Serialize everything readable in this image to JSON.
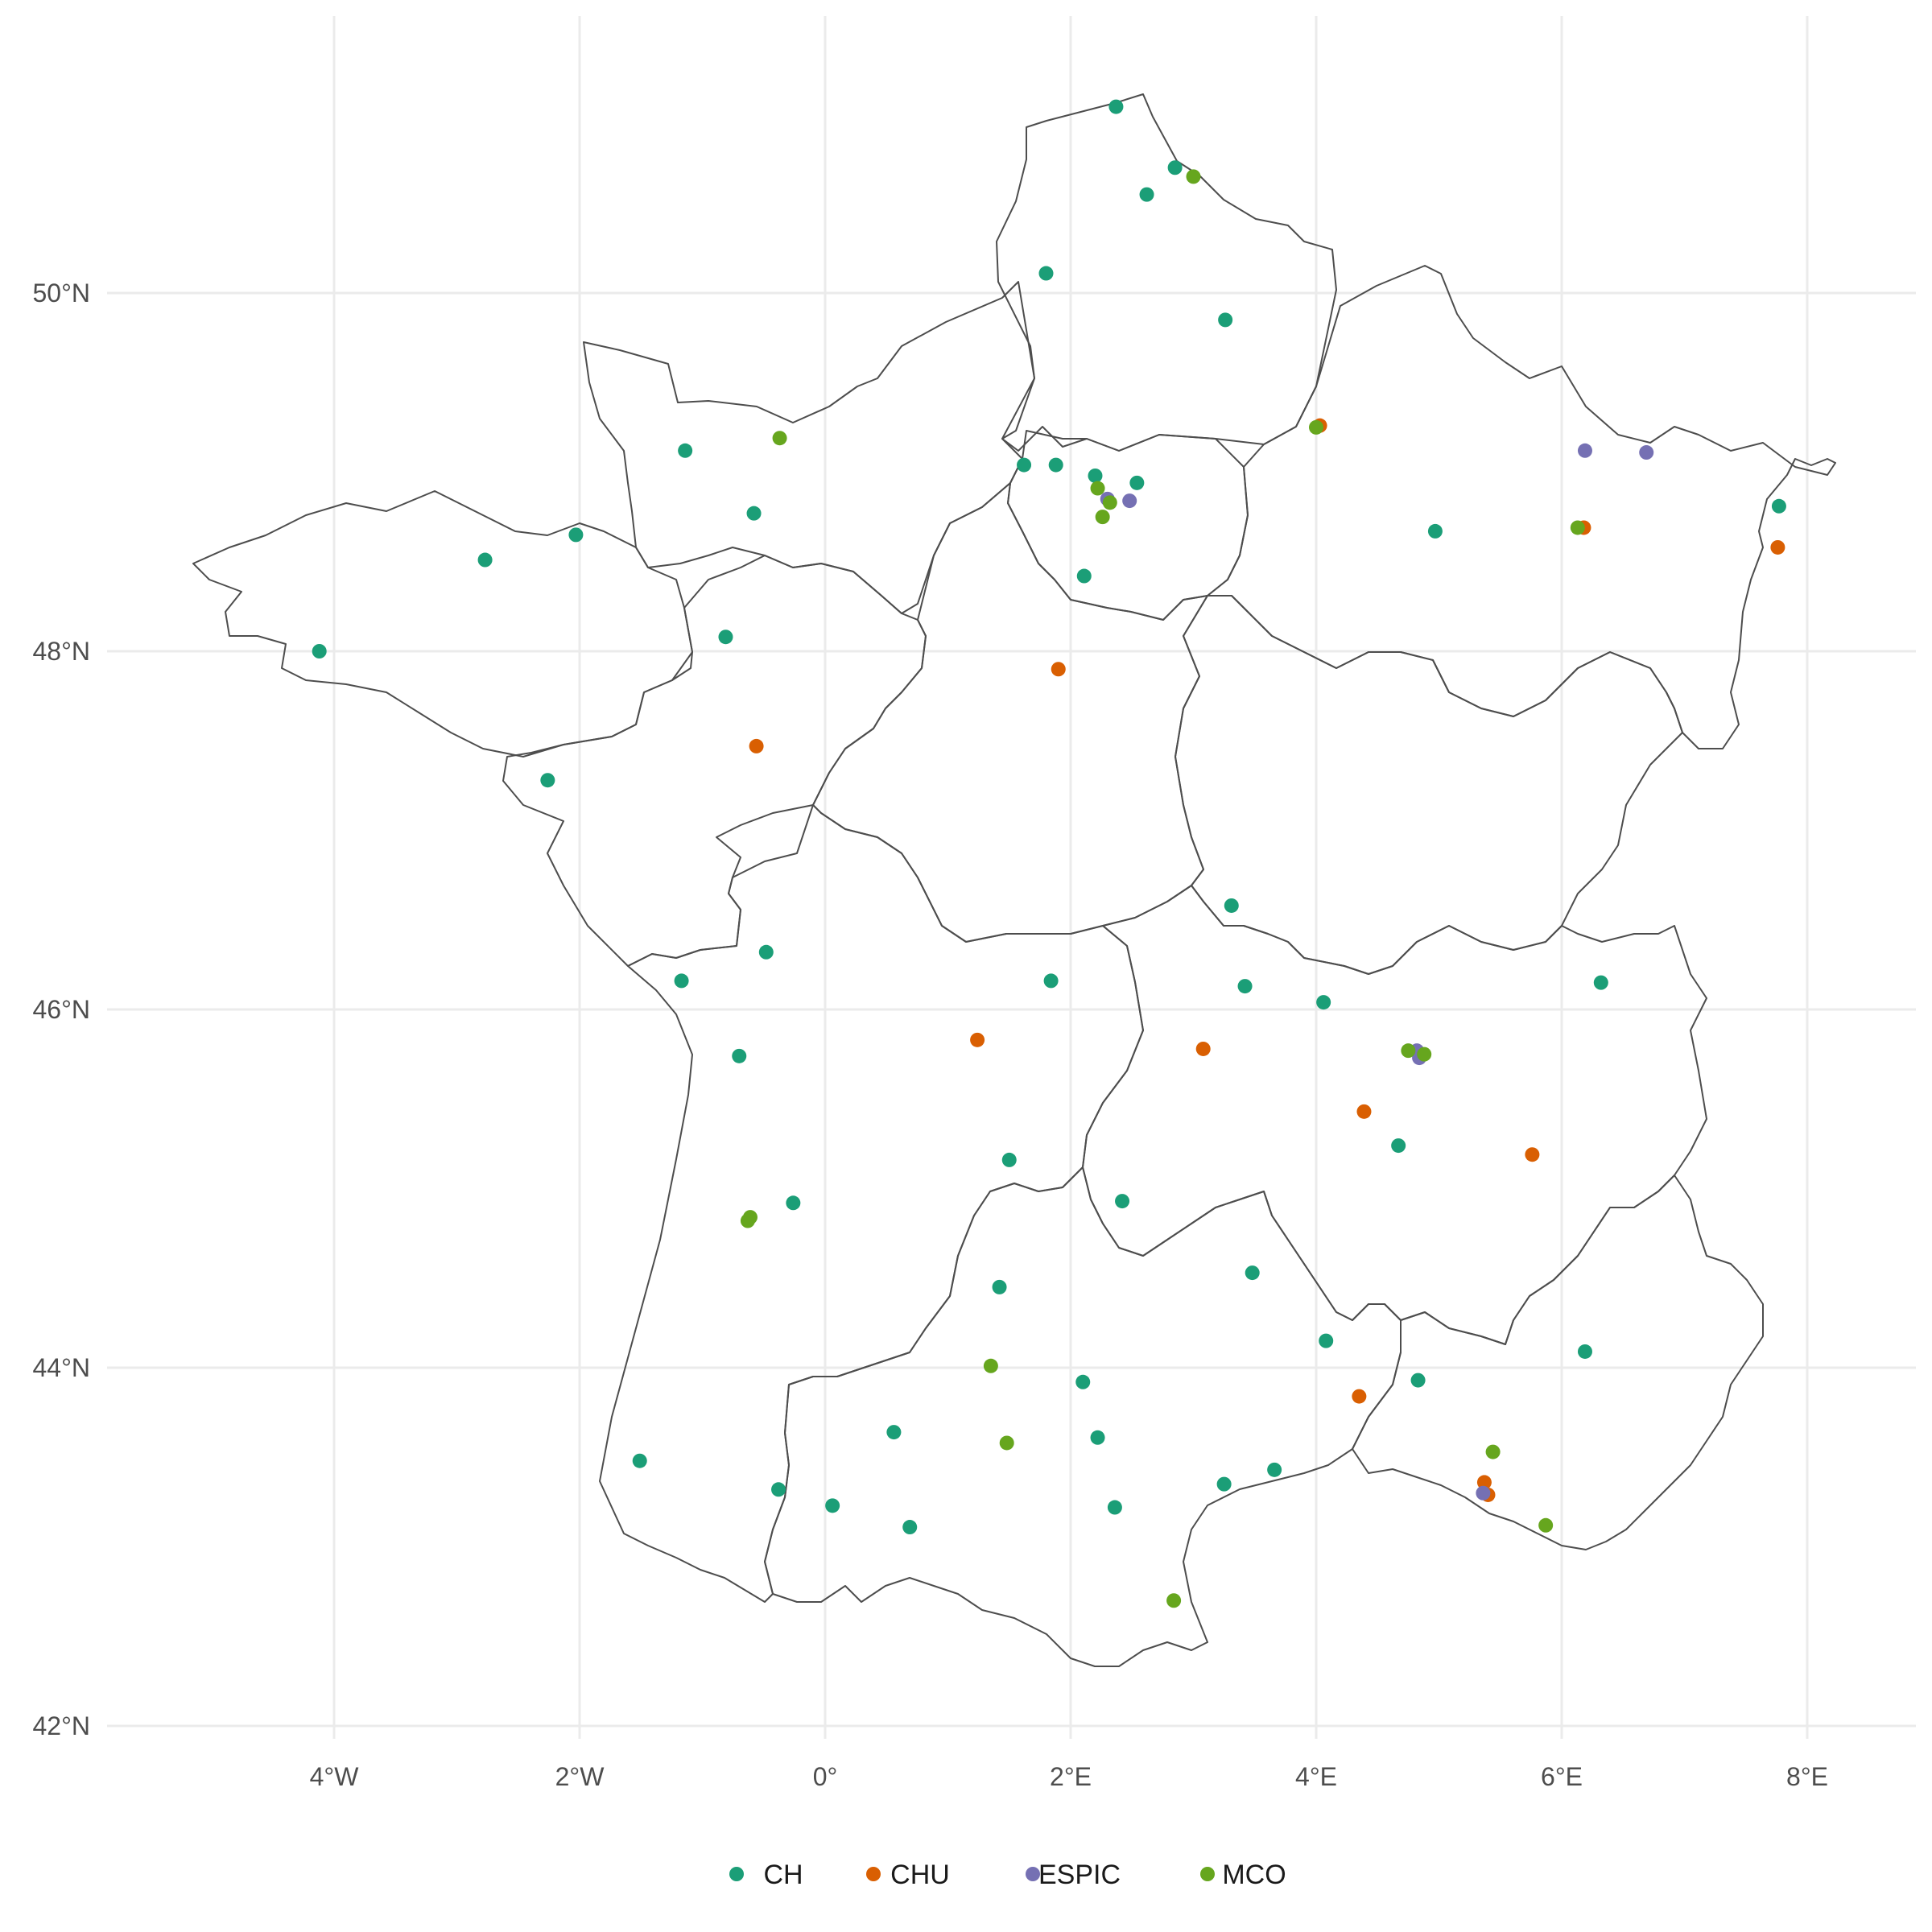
{
  "chart_data": {
    "type": "scatter",
    "projection": "equirectangular",
    "title": "",
    "xlabel": "",
    "ylabel": "",
    "xlim": [
      -6.0,
      8.9
    ],
    "ylim": [
      41.5,
      51.6
    ],
    "grid": true,
    "legend_position": "bottom",
    "x_ticks": [
      {
        "value": -4,
        "label": "4°W"
      },
      {
        "value": -2,
        "label": "2°W"
      },
      {
        "value": 0,
        "label": "0°"
      },
      {
        "value": 2,
        "label": "2°E"
      },
      {
        "value": 4,
        "label": "4°E"
      },
      {
        "value": 6,
        "label": "6°E"
      },
      {
        "value": 8,
        "label": "8°E"
      }
    ],
    "y_ticks": [
      {
        "value": 42,
        "label": "42°N"
      },
      {
        "value": 44,
        "label": "44°N"
      },
      {
        "value": 46,
        "label": "46°N"
      },
      {
        "value": 48,
        "label": "48°N"
      },
      {
        "value": 50,
        "label": "50°N"
      }
    ],
    "series": [
      {
        "name": "CH",
        "color": "#1b9e77",
        "points": [
          [
            2.37,
            51.04
          ],
          [
            2.85,
            50.7
          ],
          [
            2.62,
            50.55
          ],
          [
            1.8,
            50.11
          ],
          [
            3.26,
            49.85
          ],
          [
            -1.14,
            49.12
          ],
          [
            -0.58,
            48.77
          ],
          [
            -2.77,
            48.51
          ],
          [
            -2.03,
            48.65
          ],
          [
            -4.12,
            48.0
          ],
          [
            -0.81,
            48.08
          ],
          [
            -2.26,
            47.28
          ],
          [
            1.62,
            49.04
          ],
          [
            1.88,
            49.04
          ],
          [
            2.2,
            48.98
          ],
          [
            2.54,
            48.94
          ],
          [
            2.11,
            48.42
          ],
          [
            4.97,
            48.67
          ],
          [
            7.77,
            48.81
          ],
          [
            3.31,
            46.58
          ],
          [
            -0.48,
            46.32
          ],
          [
            -1.17,
            46.16
          ],
          [
            -0.7,
            45.74
          ],
          [
            1.84,
            46.16
          ],
          [
            3.42,
            46.13
          ],
          [
            4.06,
            46.04
          ],
          [
            6.32,
            46.15
          ],
          [
            4.67,
            45.24
          ],
          [
            1.5,
            45.16
          ],
          [
            2.42,
            44.93
          ],
          [
            -0.26,
            44.92
          ],
          [
            3.48,
            44.53
          ],
          [
            1.42,
            44.45
          ],
          [
            4.08,
            44.15
          ],
          [
            2.1,
            43.92
          ],
          [
            4.83,
            43.93
          ],
          [
            6.19,
            44.09
          ],
          [
            0.56,
            43.64
          ],
          [
            2.22,
            43.61
          ],
          [
            3.66,
            43.43
          ],
          [
            3.25,
            43.35
          ],
          [
            -1.51,
            43.48
          ],
          [
            -0.38,
            43.32
          ],
          [
            0.06,
            43.23
          ],
          [
            2.36,
            43.22
          ],
          [
            0.69,
            43.11
          ]
        ]
      },
      {
        "name": "CHU",
        "color": "#d95f02",
        "points": [
          [
            4.03,
            49.26
          ],
          [
            1.9,
            47.9
          ],
          [
            -0.56,
            47.47
          ],
          [
            6.18,
            48.69
          ],
          [
            7.76,
            48.58
          ],
          [
            1.24,
            45.83
          ],
          [
            3.08,
            45.78
          ],
          [
            4.39,
            45.43
          ],
          [
            5.76,
            45.19
          ],
          [
            4.35,
            43.84
          ],
          [
            5.37,
            43.36
          ],
          [
            5.4,
            43.29
          ]
        ]
      },
      {
        "name": "ESPIC",
        "color": "#7570b3",
        "points": [
          [
            2.3,
            48.85
          ],
          [
            2.48,
            48.84
          ],
          [
            6.19,
            49.12
          ],
          [
            6.69,
            49.11
          ],
          [
            4.82,
            45.77
          ],
          [
            4.84,
            45.73
          ],
          [
            5.36,
            43.3
          ]
        ]
      },
      {
        "name": "MCO",
        "color": "#66a61e",
        "points": [
          [
            -0.37,
            49.19
          ],
          [
            3.0,
            50.65
          ],
          [
            4.0,
            49.25
          ],
          [
            2.22,
            48.91
          ],
          [
            2.32,
            48.83
          ],
          [
            2.26,
            48.75
          ],
          [
            6.13,
            48.69
          ],
          [
            4.75,
            45.77
          ],
          [
            4.88,
            45.75
          ],
          [
            -0.61,
            44.84
          ],
          [
            -0.63,
            44.82
          ],
          [
            1.35,
            44.01
          ],
          [
            1.48,
            43.58
          ],
          [
            5.44,
            43.53
          ],
          [
            5.87,
            43.12
          ],
          [
            2.84,
            42.7
          ]
        ]
      }
    ]
  }
}
